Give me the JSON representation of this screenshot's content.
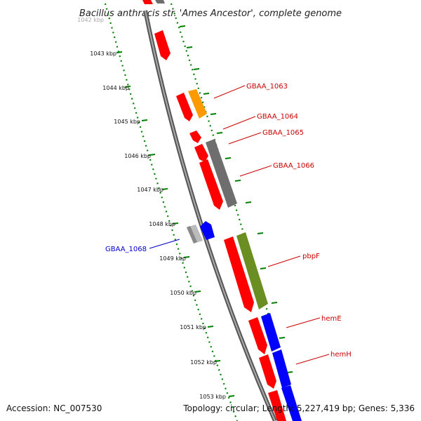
{
  "title": "Bacillus anthracis str. 'Ames Ancestor', complete genome",
  "footer": {
    "accession": "Accession: NC_007530",
    "topology": "Topology: circular; Length: 5,227,419 bp; Genes: 5,336"
  },
  "colors": {
    "red": "#ff0000",
    "orange": "#ff9900",
    "gray": "#6e6e6e",
    "lightgray": "#bbbbbb",
    "blue": "#0000ff",
    "olive": "#6b8e23",
    "tick": "#008000",
    "backbone": "#888888",
    "label_red": "#cc0000",
    "label_blue": "#0000cc"
  },
  "ticks": [
    {
      "label": "1042 kbp",
      "faded": true
    },
    {
      "label": "1043 kbp",
      "faded": false
    },
    {
      "label": "1044 kbp",
      "faded": false
    },
    {
      "label": "1045 kbp",
      "faded": false
    },
    {
      "label": "1046 kbp",
      "faded": false
    },
    {
      "label": "1047 kbp",
      "faded": false
    },
    {
      "label": "1048 kbp",
      "faded": false
    },
    {
      "label": "1049 kbp",
      "faded": false
    },
    {
      "label": "1050 kbp",
      "faded": false
    },
    {
      "label": "1051 kbp",
      "faded": false
    },
    {
      "label": "1052 kbp",
      "faded": false
    },
    {
      "label": "1053 kbp",
      "faded": false
    }
  ],
  "gene_labels": [
    {
      "name": "GBAA_1063",
      "color": "#cc0000"
    },
    {
      "name": "GBAA_1064",
      "color": "#cc0000"
    },
    {
      "name": "GBAA_1065",
      "color": "#cc0000"
    },
    {
      "name": "GBAA_1066",
      "color": "#cc0000"
    },
    {
      "name": "GBAA_1068",
      "color": "#0000cc"
    },
    {
      "name": "pbpF",
      "color": "#cc0000"
    },
    {
      "name": "hemE",
      "color": "#cc0000"
    },
    {
      "name": "hemH",
      "color": "#cc0000"
    }
  ]
}
